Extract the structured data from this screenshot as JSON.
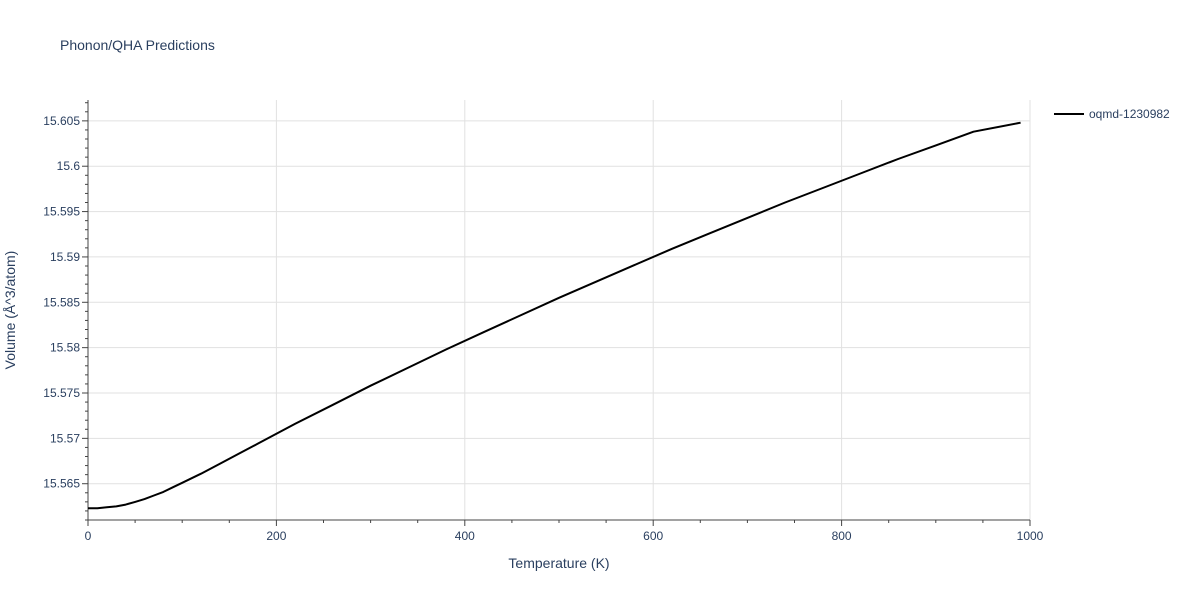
{
  "chart_data": {
    "type": "line",
    "title": "Phonon/QHA Predictions",
    "xlabel": "Temperature (K)",
    "ylabel": "Volume (Å^3/atom)",
    "xlim": [
      0,
      1000
    ],
    "ylim": [
      15.561,
      15.6073
    ],
    "x_ticks": [
      0,
      200,
      400,
      600,
      800,
      1000
    ],
    "x_tick_labels": [
      "0",
      "200",
      "400",
      "600",
      "800",
      "1000"
    ],
    "y_ticks": [
      15.565,
      15.57,
      15.575,
      15.58,
      15.585,
      15.59,
      15.595,
      15.6,
      15.605
    ],
    "y_tick_labels": [
      "15.565",
      "15.57",
      "15.575",
      "15.58",
      "15.585",
      "15.59",
      "15.595",
      "15.6",
      "15.605"
    ],
    "grid": true,
    "legend_position": "top-right",
    "series": [
      {
        "name": "oqmd-1230982",
        "color": "#000000",
        "x": [
          0,
          10,
          20,
          30,
          40,
          50,
          60,
          70,
          80,
          90,
          100,
          120,
          140,
          160,
          180,
          200,
          220,
          260,
          300,
          340,
          380,
          420,
          460,
          500,
          540,
          580,
          620,
          660,
          700,
          740,
          780,
          820,
          860,
          900,
          940,
          990
        ],
        "y": [
          15.5623,
          15.5623,
          15.5624,
          15.5625,
          15.5627,
          15.563,
          15.5633,
          15.5637,
          15.5641,
          15.5646,
          15.5651,
          15.5661,
          15.5672,
          15.5683,
          15.5694,
          15.5705,
          15.5716,
          15.5737,
          15.5758,
          15.5778,
          15.5798,
          15.5817,
          15.5836,
          15.5855,
          15.5873,
          15.5891,
          15.5909,
          15.5926,
          15.5943,
          15.596,
          15.5976,
          15.5992,
          15.6008,
          15.6023,
          15.6038,
          15.6048
        ]
      }
    ]
  }
}
